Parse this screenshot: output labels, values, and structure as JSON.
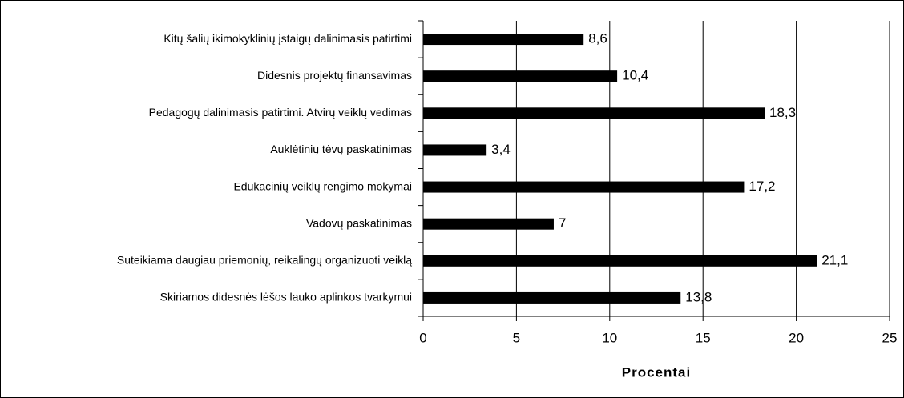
{
  "chart_data": {
    "type": "barh",
    "categories": [
      "Kitų šalių ikimokyklinių įstaigų dalinimasis patirtimi",
      "Didesnis projektų finansavimas",
      "Pedagogų dalinimasis patirtimi. Atvirų veiklų vedimas",
      "Auklėtinių tėvų paskatinimas",
      "Edukacinių veiklų rengimo mokymai",
      "Vadovų paskatinimas",
      "Suteikiama daugiau priemonių, reikalingų organizuoti veiklą",
      "Skiriamos didesnės lėšos lauko aplinkos tvarkymui"
    ],
    "values": [
      8.6,
      10.4,
      18.3,
      3.4,
      17.2,
      7,
      21.1,
      13.8
    ],
    "value_labels": [
      "8,6",
      "10,4",
      "18,3",
      "3,4",
      "17,2",
      "7",
      "21,1",
      "13,8"
    ],
    "color": "#000000",
    "xlabel": "Procentai",
    "xlim": [
      0,
      25
    ],
    "xticks": [
      0,
      5,
      10,
      15,
      20,
      25
    ],
    "grid": true
  }
}
